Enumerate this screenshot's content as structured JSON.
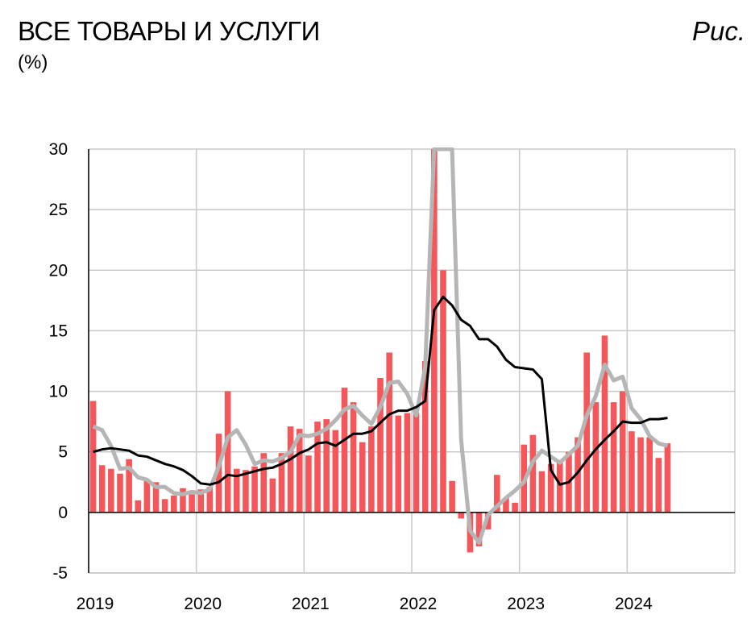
{
  "header": {
    "title": "ВСЕ ТОВАРЫ И УСЛУГИ",
    "unit": "(%)",
    "fig_label": "Рис."
  },
  "chart_data": {
    "type": "bar+line",
    "title": "ВСЕ ТОВАРЫ И УСЛУГИ",
    "ylabel": "(%)",
    "ylim": [
      -5,
      30
    ],
    "yticks": [
      -5,
      0,
      5,
      10,
      15,
      20,
      25,
      30
    ],
    "xlim_months": [
      0,
      72
    ],
    "xticks": [
      {
        "label": "2019",
        "month": 0
      },
      {
        "label": "2020",
        "month": 12
      },
      {
        "label": "2021",
        "month": 24
      },
      {
        "label": "2022",
        "month": 36
      },
      {
        "label": "2023",
        "month": 48
      },
      {
        "label": "2024",
        "month": 60
      }
    ],
    "grid": true,
    "colors": {
      "bars": "#f4565a",
      "black_line": "#000000",
      "gray_line": "#b5b5b5",
      "grid": "#c8c8c8"
    },
    "series": [
      {
        "kind": "bar",
        "start": "2019-01",
        "values": [
          9.2,
          3.9,
          3.6,
          3.2,
          4.4,
          1.0,
          2.6,
          2.5,
          1.1,
          1.4,
          2.0,
          1.5,
          1.9,
          2.1,
          6.5,
          10.0,
          3.6,
          3.5,
          3.8,
          4.9,
          2.8,
          4.9,
          7.1,
          6.9,
          4.7,
          7.5,
          7.7,
          6.8,
          10.3,
          9.1,
          5.8,
          7.1,
          11.1,
          13.2,
          8.0,
          8.2,
          8.2,
          12.5,
          30.0,
          20.0,
          2.6,
          -0.5,
          -3.3,
          -2.8,
          -1.4,
          3.1,
          1.2,
          0.8,
          5.6,
          6.4,
          3.4,
          4.0,
          4.2,
          5.0,
          6.2,
          13.2,
          9.1,
          14.6,
          9.1,
          10.0,
          6.7,
          6.2,
          6.2,
          4.5,
          5.7
        ]
      },
      {
        "kind": "line",
        "color": "black",
        "start": "2019-01",
        "values": [
          5.0,
          5.2,
          5.3,
          5.2,
          5.1,
          4.7,
          4.6,
          4.3,
          4.0,
          3.8,
          3.5,
          3.0,
          2.4,
          2.3,
          2.5,
          3.1,
          3.0,
          3.2,
          3.4,
          3.6,
          3.7,
          4.0,
          4.4,
          4.9,
          5.2,
          5.7,
          5.8,
          5.5,
          6.0,
          6.5,
          6.5,
          6.7,
          7.4,
          8.1,
          8.4,
          8.4,
          8.7,
          9.2,
          16.7,
          17.8,
          17.1,
          15.9,
          15.4,
          14.3,
          14.3,
          13.7,
          12.6,
          12.0,
          11.9,
          11.8,
          11.0,
          3.5,
          2.3,
          2.5,
          3.3,
          4.3,
          5.2,
          6.0,
          6.7,
          7.5,
          7.4,
          7.4,
          7.7,
          7.7,
          7.8
        ]
      },
      {
        "kind": "line",
        "color": "gray",
        "start": "2019-01",
        "values": [
          7.1,
          6.8,
          5.5,
          3.6,
          3.7,
          2.9,
          2.7,
          2.1,
          2.1,
          1.6,
          1.5,
          1.7,
          1.6,
          1.9,
          3.8,
          6.2,
          6.8,
          5.6,
          4.0,
          4.3,
          4.2,
          4.5,
          5.0,
          6.4,
          6.3,
          6.5,
          6.9,
          7.6,
          8.5,
          8.8,
          8.0,
          7.3,
          8.7,
          10.7,
          10.8,
          9.8,
          8.0,
          12.0,
          30.0,
          30.0,
          30.0,
          6.0,
          -1.5,
          -2.5,
          -0.2,
          0.5,
          1.2,
          1.8,
          2.5,
          4.2,
          5.1,
          4.6,
          4.1,
          4.8,
          5.5,
          8.0,
          9.6,
          12.2,
          10.9,
          11.2,
          8.6,
          7.7,
          6.3,
          5.7,
          5.5
        ]
      }
    ]
  }
}
